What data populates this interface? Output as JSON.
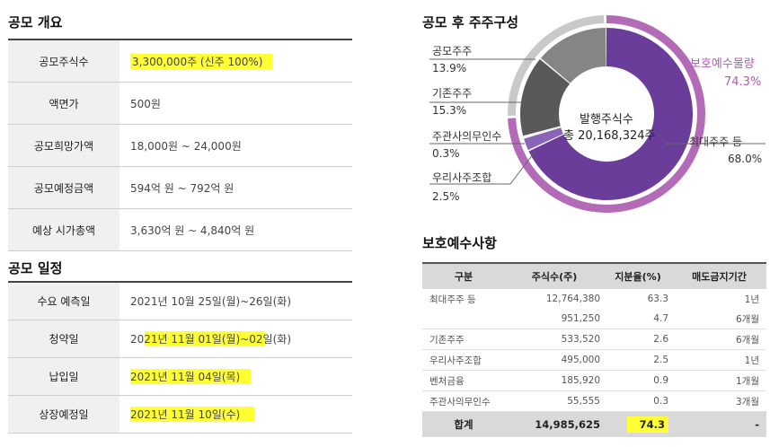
{
  "overview": {
    "title": "공모 개요",
    "rows": [
      {
        "label": "공모주식수",
        "value": "3,300,000주 (신주 100%)"
      },
      {
        "label": "액면가",
        "value": "500원"
      },
      {
        "label": "공모희망가액",
        "value": "18,000원 ~ 24,000원"
      },
      {
        "label": "공모예정금액",
        "value": "594억 원 ~ 792억 원"
      },
      {
        "label": "예상 시가총액",
        "value": "3,630억 원 ~ 4,840억 원"
      }
    ]
  },
  "schedule": {
    "title": "공모 일정",
    "rows": [
      {
        "label": "수요 예측일",
        "value": "2021년 10월 25일(월)~26일(화)"
      },
      {
        "label": "청약일",
        "value": "2021년 11월 01일(월)~02일(화)"
      },
      {
        "label": "납입일",
        "value": "2021년 11월 04일(목)"
      },
      {
        "label": "상장예정일",
        "value": "2021년 11월 10일(수)"
      }
    ]
  },
  "ownership": {
    "title": "공모 후 주주구성",
    "center_line1": "발행주식수",
    "center_line2": "총 20,168,324주",
    "outer_label": "보호예수물량",
    "outer_value": "74.3%",
    "outer_fraction": 0.743,
    "segments": [
      {
        "name": "최대주주 등",
        "value": "68.0%",
        "pct": 68.0,
        "color": "#6a3d9a"
      },
      {
        "name": "우리사주조합",
        "value": "2.5%",
        "pct": 2.5,
        "color": "#8a64b6"
      },
      {
        "name": "주관사의무인수",
        "value": "0.3%",
        "pct": 0.3,
        "color": "#9b9b9b"
      },
      {
        "name": "기존주주",
        "value": "15.3%",
        "pct": 15.3,
        "color": "#595959"
      },
      {
        "name": "공모주주",
        "value": "13.9%",
        "pct": 13.9,
        "color": "#858585"
      }
    ],
    "colors": {
      "outer_accent": "#b36bb8",
      "outer_rest": "#c9c9c9"
    }
  },
  "protection": {
    "title": "보호예수사항",
    "headers": [
      "구분",
      "주식수(주)",
      "지분율(%)",
      "매도금지기간"
    ],
    "rows": [
      {
        "category": "최대주주 등",
        "shares": "12,764,380",
        "ratio": "63.3",
        "period": "1년"
      },
      {
        "category": "",
        "shares": "951,250",
        "ratio": "4.7",
        "period": "6개월"
      },
      {
        "category": "기존주주",
        "shares": "533,520",
        "ratio": "2.6",
        "period": "6개월"
      },
      {
        "category": "우리사주조합",
        "shares": "495,000",
        "ratio": "2.5",
        "period": "1년"
      },
      {
        "category": "벤처금융",
        "shares": "185,920",
        "ratio": "0.9",
        "period": "1개월"
      },
      {
        "category": "주관사의무인수",
        "shares": "55,555",
        "ratio": "0.3",
        "period": "3개월"
      }
    ],
    "total": {
      "category": "합계",
      "shares": "14,985,625",
      "ratio": "74.3",
      "period": "-"
    }
  }
}
